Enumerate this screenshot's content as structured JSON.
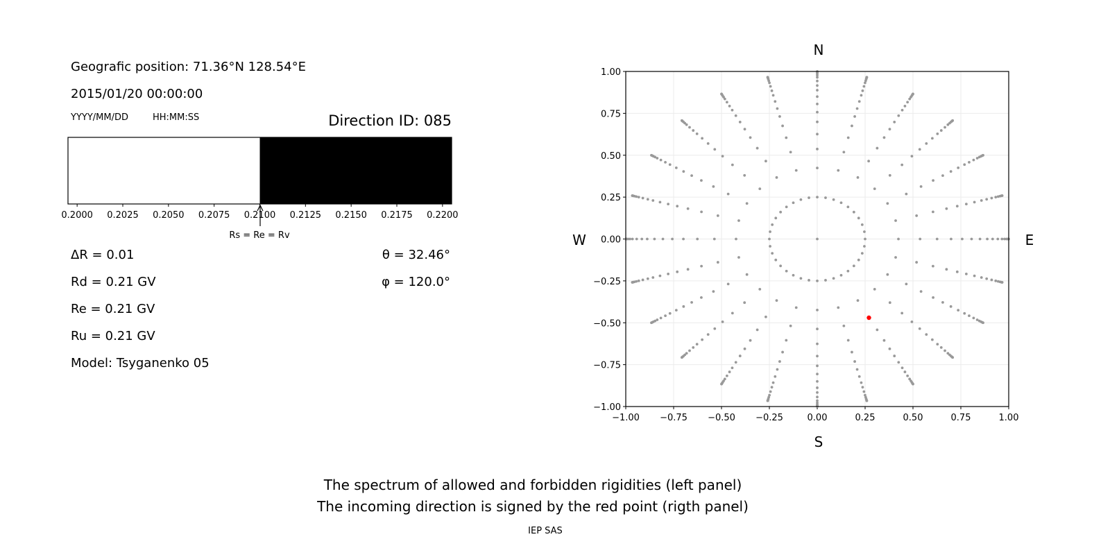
{
  "left_panel": {
    "position": "Geografic position: 71.36°N 128.54°E",
    "datetime": "2015/01/20 00:00:00",
    "date_format": "YYYY/MM/DD",
    "time_format": "HH:MM:SS",
    "direction_id": "Direction ID: 085",
    "delta_r": "ΔR = 0.01",
    "rd": "Rd = 0.21 GV",
    "re": "Re = 0.21 GV",
    "ru": "Ru = 0.21 GV",
    "model": "Model: Tsyganenko 05",
    "theta": "θ = 32.46°",
    "phi": "φ = 120.0°",
    "arrow_label": "Rs = Re = Rv"
  },
  "footer": {
    "line1": "The spectrum of allowed and forbidden rigidities (left panel)",
    "line2": "The incoming direction is signed by the red point (rigth panel)",
    "credit": "IEP SAS"
  },
  "chart_data": [
    {
      "type": "bar",
      "title": "",
      "xlim": [
        0.1995,
        0.2205
      ],
      "xticks": [
        "0.2000",
        "0.2025",
        "0.2050",
        "0.2075",
        "0.2100",
        "0.2125",
        "0.2150",
        "0.2175",
        "0.2200"
      ],
      "segments": [
        {
          "from": 0.1995,
          "to": 0.21,
          "state": "allowed",
          "color": "#ffffff"
        },
        {
          "from": 0.21,
          "to": 0.2205,
          "state": "forbidden",
          "color": "#000000"
        }
      ],
      "arrow_at": 0.21
    },
    {
      "type": "scatter",
      "xlim": [
        -1,
        1
      ],
      "ylim": [
        -1,
        1
      ],
      "grid": true,
      "xticks": [
        "−1.00",
        "−0.75",
        "−0.50",
        "−0.25",
        "0.00",
        "0.25",
        "0.50",
        "0.75",
        "1.00"
      ],
      "yticks": [
        "−1.00",
        "−0.75",
        "−0.50",
        "−0.25",
        "0.00",
        "0.25",
        "0.50",
        "0.75",
        "1.00"
      ],
      "compass": {
        "north": "N",
        "south": "S",
        "west": "W",
        "east": "E"
      },
      "point_color": "#999999",
      "center_point": [
        0,
        0
      ],
      "inner_ring": {
        "radius": 0.25,
        "azimuth_step_deg": 10
      },
      "spokes": {
        "azimuth_step_deg": 15,
        "radii": [
          0.424,
          0.537,
          0.626,
          0.699,
          0.757,
          0.806,
          0.85,
          0.888,
          0.916,
          0.943,
          0.965,
          0.978,
          0.988,
          0.995,
          0.999,
          1.0
        ]
      },
      "highlight": {
        "x": 0.27,
        "y": -0.47,
        "color": "#ff0000"
      }
    }
  ]
}
